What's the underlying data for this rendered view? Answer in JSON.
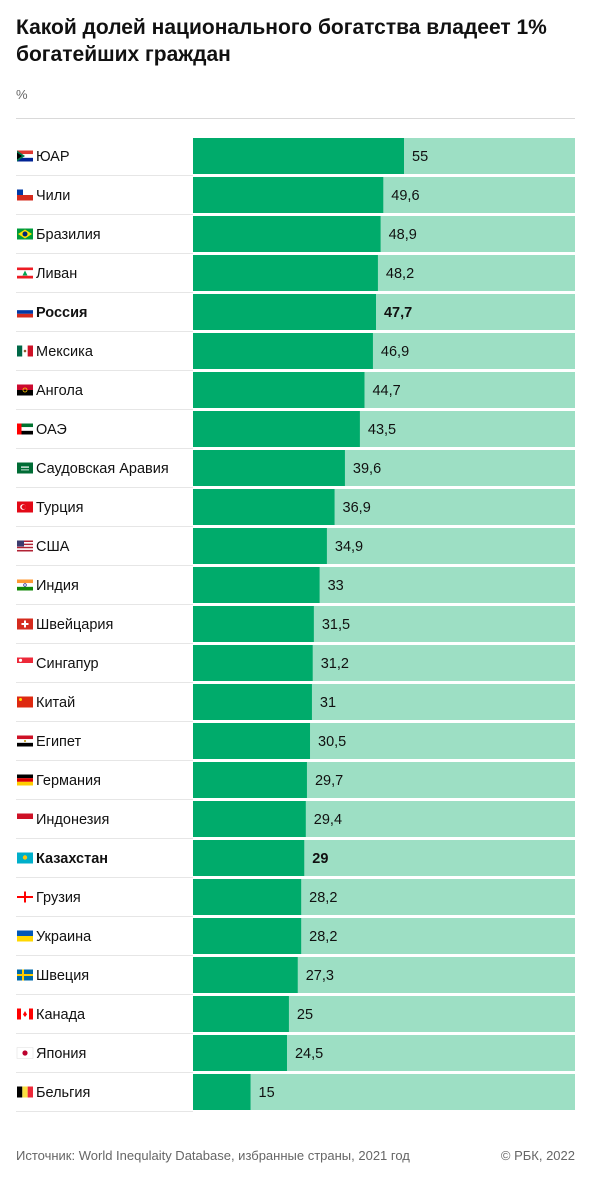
{
  "header": {
    "title": "Какой долей национального богатства владеет 1% богатейших граждан",
    "unit": "%"
  },
  "footer": {
    "source": "Источник: World Inequlaity Database, избранные страны, 2021 год",
    "copyright": "© РБК, 2022"
  },
  "colors": {
    "bar": "#00ab6b",
    "track": "#9ddfc4",
    "text": "#111111"
  },
  "chart_data": {
    "type": "bar",
    "orientation": "horizontal",
    "title": "Какой долей национального богатства владеет 1% богатейших граждан",
    "unit": "%",
    "xlim": [
      0,
      100
    ],
    "grid": false,
    "legend": "none",
    "categories": [
      "ЮАР",
      "Чили",
      "Бразилия",
      "Ливан",
      "Россия",
      "Мексика",
      "Ангола",
      "ОАЭ",
      "Саудовская Аравия",
      "Турция",
      "США",
      "Индия",
      "Швейцария",
      "Сингапур",
      "Китай",
      "Египет",
      "Германия",
      "Индонезия",
      "Казахстан",
      "Грузия",
      "Украина",
      "Швеция",
      "Канада",
      "Япония",
      "Бельгия"
    ],
    "values": [
      55,
      49.6,
      48.9,
      48.2,
      47.7,
      46.9,
      44.7,
      43.5,
      39.6,
      36.9,
      34.9,
      33,
      31.5,
      31.2,
      31,
      30.5,
      29.7,
      29.4,
      29,
      28.2,
      28.2,
      27.3,
      25,
      24.5,
      15
    ],
    "value_labels": [
      "55",
      "49,6",
      "48,9",
      "48,2",
      "47,7",
      "46,9",
      "44,7",
      "43,5",
      "39,6",
      "36,9",
      "34,9",
      "33",
      "31,5",
      "31,2",
      "31",
      "30,5",
      "29,7",
      "29,4",
      "29",
      "28,2",
      "28,2",
      "27,3",
      "25",
      "24,5",
      "15"
    ],
    "highlighted": [
      "Россия",
      "Казахстан"
    ],
    "flags": [
      "south-africa-flag-icon",
      "chile-flag-icon",
      "brazil-flag-icon",
      "lebanon-flag-icon",
      "russia-flag-icon",
      "mexico-flag-icon",
      "angola-flag-icon",
      "uae-flag-icon",
      "saudi-arabia-flag-icon",
      "turkey-flag-icon",
      "usa-flag-icon",
      "india-flag-icon",
      "switzerland-flag-icon",
      "singapore-flag-icon",
      "china-flag-icon",
      "egypt-flag-icon",
      "germany-flag-icon",
      "indonesia-flag-icon",
      "kazakhstan-flag-icon",
      "georgia-flag-icon",
      "ukraine-flag-icon",
      "sweden-flag-icon",
      "canada-flag-icon",
      "japan-flag-icon",
      "belgium-flag-icon"
    ]
  }
}
